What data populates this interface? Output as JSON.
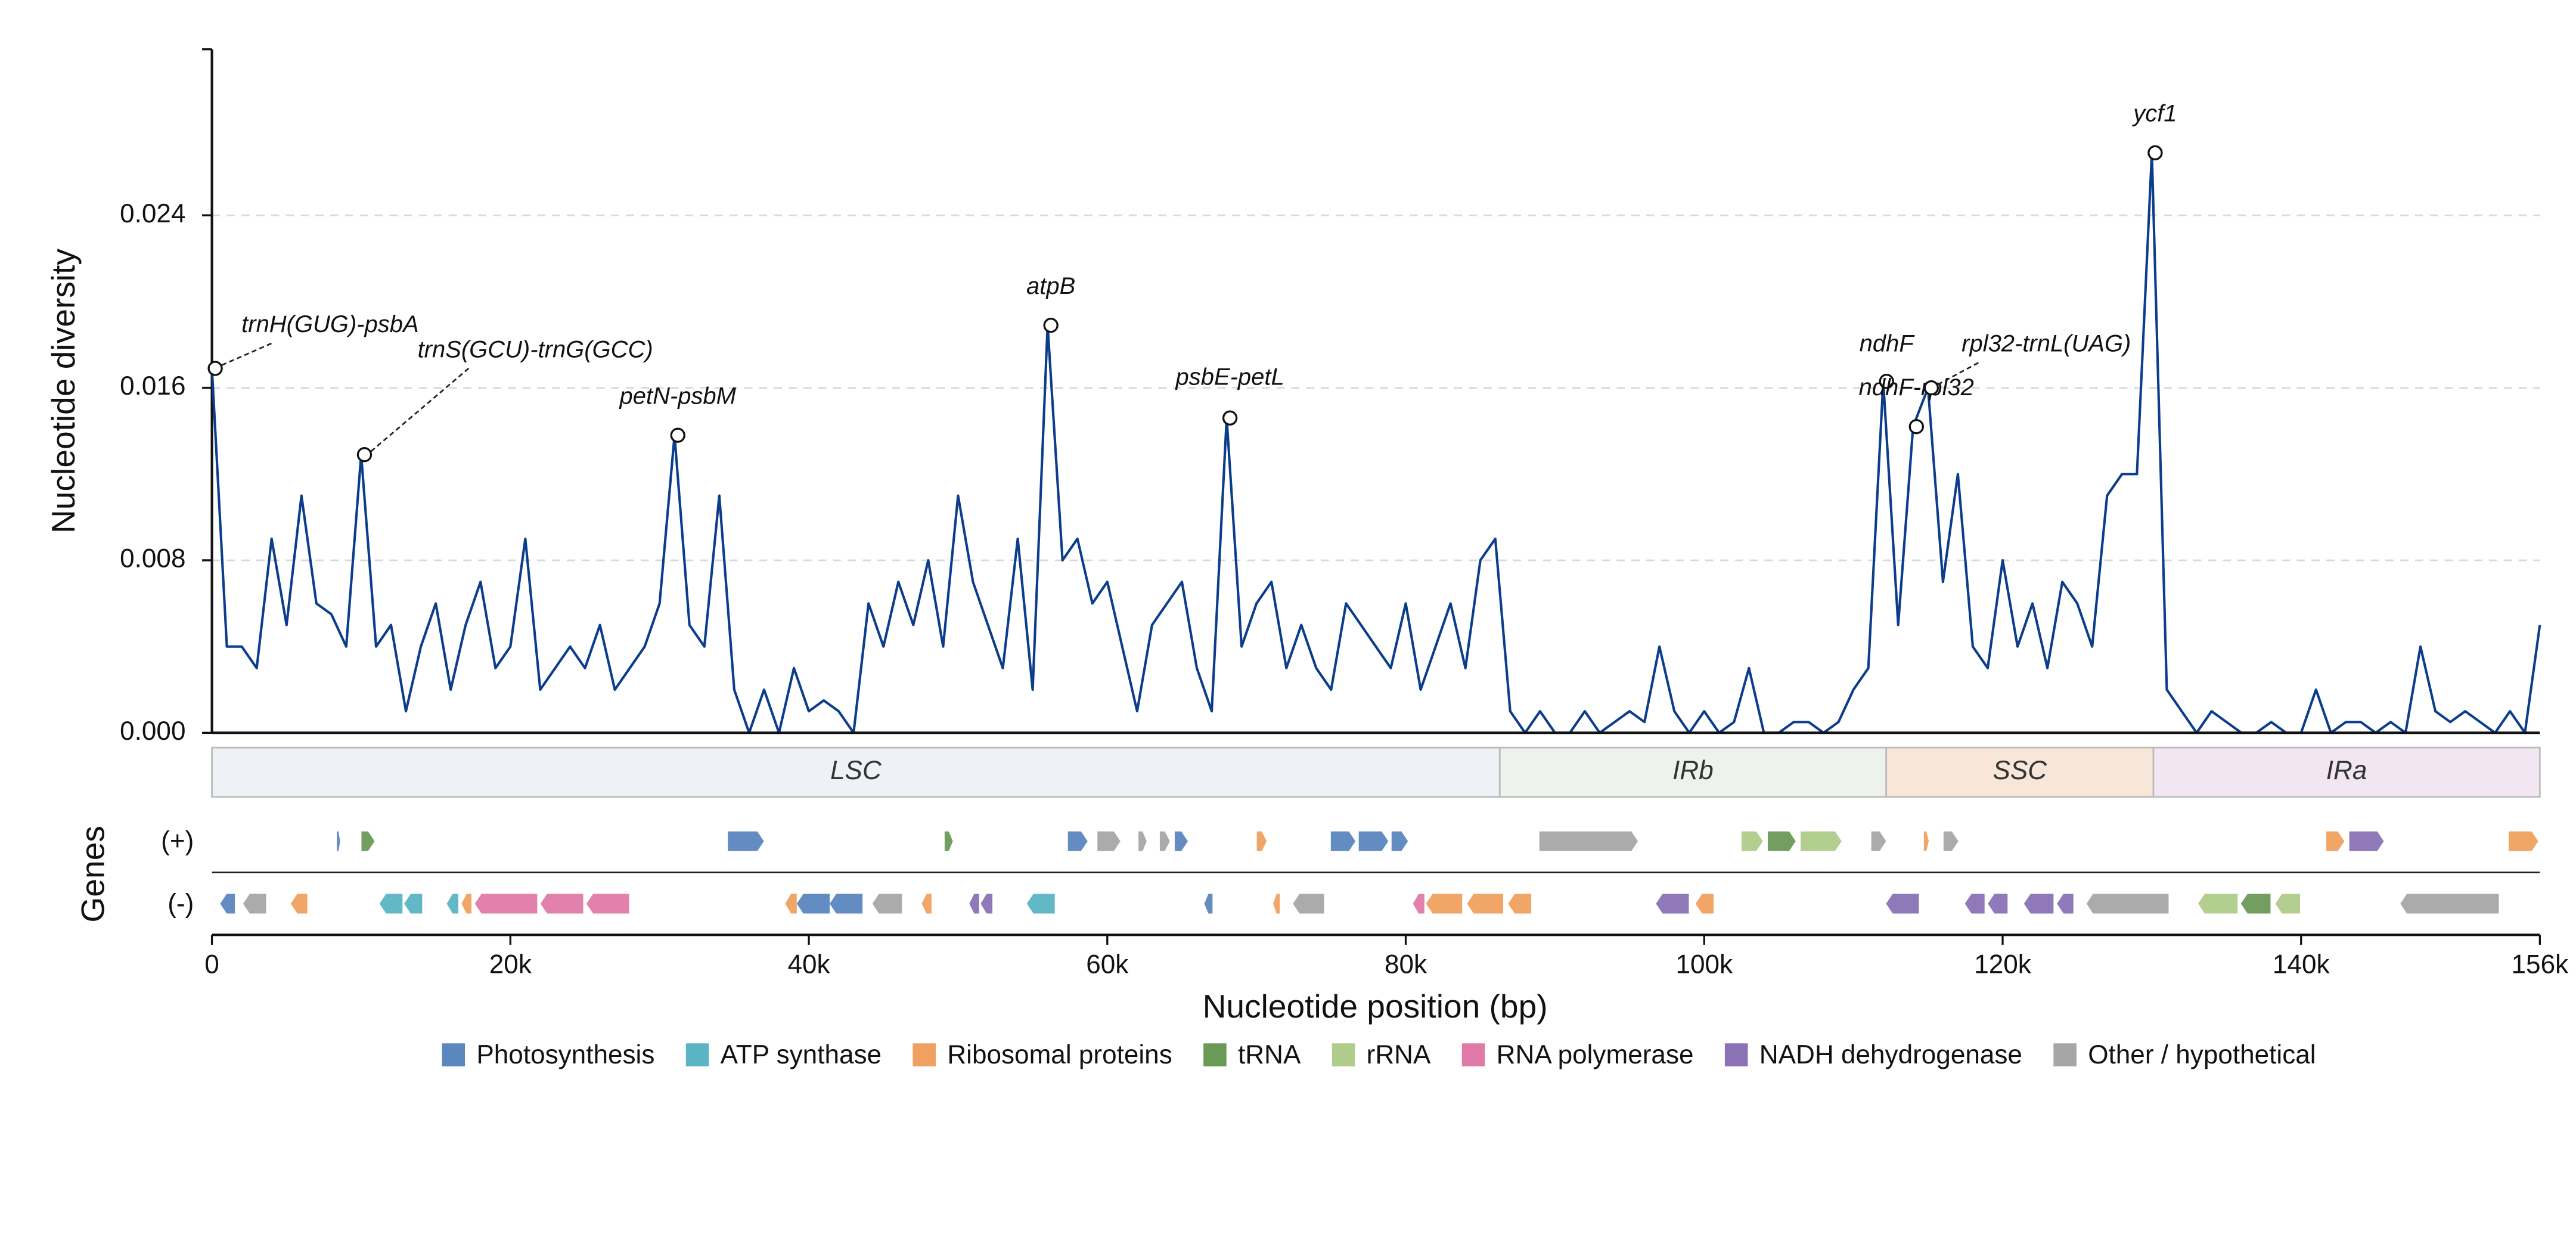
{
  "chart_data": {
    "type": "line",
    "ylabel": "Nucleotide diversity",
    "xlabel": "Nucleotide position (bp)",
    "genes_label": "Genes",
    "plus_label": "(+)",
    "minus_label": "(-)",
    "color": "#0b3d8c",
    "grid": true,
    "xlim": [
      0,
      156000
    ],
    "ylim": [
      0,
      0.0317
    ],
    "yticks": [
      {
        "value": 0,
        "label": "0.000"
      },
      {
        "value": 0.008,
        "label": "0.008"
      },
      {
        "value": 0.016,
        "label": "0.016"
      },
      {
        "value": 0.024,
        "label": "0.024"
      }
    ],
    "xticks": [
      0,
      {
        "value": 20000,
        "label": "20k"
      },
      {
        "value": 40000,
        "label": "40k"
      },
      {
        "value": 60000,
        "label": "60k"
      },
      {
        "value": 80000,
        "label": "80k"
      },
      {
        "value": 100000,
        "label": "100k"
      },
      {
        "value": 120000,
        "label": "120k"
      },
      {
        "value": 140000,
        "label": "140k"
      },
      {
        "value": 156000,
        "label": "156k"
      }
    ],
    "x": [
      0,
      1000,
      2000,
      3000,
      4000,
      5000,
      6000,
      7000,
      8000,
      9000,
      10000,
      11000,
      12000,
      13000,
      14000,
      15000,
      16000,
      17000,
      18000,
      19000,
      20000,
      21000,
      22000,
      23000,
      24000,
      25000,
      26000,
      27000,
      28000,
      29000,
      30000,
      31000,
      32000,
      33000,
      34000,
      35000,
      36000,
      37000,
      38000,
      39000,
      40000,
      41000,
      42000,
      43000,
      44000,
      45000,
      46000,
      47000,
      48000,
      49000,
      50000,
      51000,
      52000,
      53000,
      54000,
      55000,
      56000,
      57000,
      58000,
      59000,
      60000,
      61000,
      62000,
      63000,
      64000,
      65000,
      66000,
      67000,
      68000,
      69000,
      70000,
      71000,
      72000,
      73000,
      74000,
      75000,
      76000,
      77000,
      78000,
      79000,
      80000,
      81000,
      82000,
      83000,
      84000,
      85000,
      86000,
      87000,
      88000,
      89000,
      90000,
      91000,
      92000,
      93000,
      94000,
      95000,
      96000,
      97000,
      98000,
      99000,
      100000,
      101000,
      102000,
      103000,
      104000,
      105000,
      106000,
      107000,
      108000,
      109000,
      110000,
      111000,
      112000,
      113000,
      114000,
      115000,
      116000,
      117000,
      118000,
      119000,
      120000,
      121000,
      122000,
      123000,
      124000,
      125000,
      126000,
      127000,
      128000,
      129000,
      130000,
      131000,
      132000,
      133000,
      134000,
      135000,
      136000,
      137000,
      138000,
      139000,
      140000,
      141000,
      142000,
      143000,
      144000,
      145000,
      146000,
      147000,
      148000,
      149000,
      150000,
      151000,
      152000,
      153000,
      154000,
      155000,
      156000
    ],
    "values": [
      0.0169,
      0.004,
      0.004,
      0.003,
      0.009,
      0.005,
      0.011,
      0.006,
      0.0055,
      0.004,
      0.0129,
      0.004,
      0.005,
      0.001,
      0.004,
      0.006,
      0.002,
      0.005,
      0.007,
      0.003,
      0.004,
      0.009,
      0.002,
      0.003,
      0.004,
      0.003,
      0.005,
      0.002,
      0.003,
      0.004,
      0.006,
      0.0138,
      0.005,
      0.004,
      0.011,
      0.002,
      0,
      0.002,
      0,
      0.003,
      0.001,
      0.0015,
      0.001,
      0,
      0.006,
      0.004,
      0.007,
      0.005,
      0.008,
      0.004,
      0.011,
      0.007,
      0.005,
      0.003,
      0.009,
      0.002,
      0.0189,
      0.008,
      0.009,
      0.006,
      0.007,
      0.004,
      0.001,
      0.005,
      0.006,
      0.007,
      0.003,
      0.001,
      0.0146,
      0.004,
      0.006,
      0.007,
      0.003,
      0.005,
      0.003,
      0.002,
      0.006,
      0.005,
      0.004,
      0.003,
      0.006,
      0.002,
      0.004,
      0.006,
      0.003,
      0.008,
      0.009,
      0.001,
      0,
      0.001,
      0,
      0,
      0.001,
      0,
      0.0005,
      0.001,
      0.0005,
      0.004,
      0.001,
      0,
      0.001,
      0,
      0.0005,
      0.003,
      0,
      0,
      0.0005,
      0.0005,
      0,
      0.0005,
      0.002,
      0.003,
      0.0163,
      0.005,
      0.0142,
      0.016,
      0.007,
      0.012,
      0.004,
      0.003,
      0.008,
      0.004,
      0.006,
      0.003,
      0.007,
      0.006,
      0.004,
      0.011,
      0.012,
      0.012,
      0.0269,
      0.002,
      0.001,
      0,
      0.001,
      0.0005,
      0,
      0,
      0.0005,
      0,
      0,
      0.002,
      0,
      0.0005,
      0.0005,
      0,
      0.0005,
      0,
      0.004,
      0.001,
      0.0005,
      0.001,
      0.0005,
      0,
      0.001,
      0,
      0.005
    ],
    "annotations": [
      {
        "text": "trnH(GUG)-psbA",
        "x": 0,
        "y": 0.0169
      },
      {
        "text": "trnS(GCU)-trnG(GCC)",
        "x": 10000,
        "y": 0.0129
      },
      {
        "text": "petN-psbM",
        "x": 31000,
        "y": 0.0138
      },
      {
        "text": "atpB",
        "x": 56000,
        "y": 0.0189
      },
      {
        "text": "psbE-petL",
        "x": 68000,
        "y": 0.0146
      },
      {
        "text": "ndhF",
        "x": 112000,
        "y": 0.0163
      },
      {
        "text": "ndhF-rpl32",
        "x": 114000,
        "y": 0.0142
      },
      {
        "text": "rpl32-trnL(UAG)",
        "x": 115000,
        "y": 0.016
      },
      {
        "text": "ycf1",
        "x": 130000,
        "y": 0.0269
      }
    ],
    "regions": [
      {
        "name": "LSC",
        "start": 0,
        "end": 86300,
        "color": "#eef2f6"
      },
      {
        "name": "IRb",
        "start": 86300,
        "end": 112200,
        "color": "#edf3ec"
      },
      {
        "name": "SSC",
        "start": 112200,
        "end": 130100,
        "color": "#f8e7d9"
      },
      {
        "name": "IRa",
        "start": 130100,
        "end": 156000,
        "color": "#f1e6f1"
      }
    ],
    "gene_categories": [
      {
        "name": "Photosynthesis",
        "color": "#5b87bf"
      },
      {
        "name": "ATP synthase",
        "color": "#5bb4c4"
      },
      {
        "name": "Ribosomal proteins",
        "color": "#f0a160"
      },
      {
        "name": "tRNA",
        "color": "#6a9a57"
      },
      {
        "name": "rRNA",
        "color": "#afcc8a"
      },
      {
        "name": "RNA polymerase",
        "color": "#e07aa8"
      },
      {
        "name": "NADH dehydrogenase",
        "color": "#8a72b5"
      },
      {
        "name": "Other / hypothetical",
        "color": "#a6a6a6"
      }
    ],
    "genes": [
      {
        "start": 8370,
        "end": 8590,
        "strand": "+",
        "category": "Photosynthesis"
      },
      {
        "start": 10020,
        "end": 10900,
        "strand": "+",
        "category": "tRNA"
      },
      {
        "start": 34570,
        "end": 36990,
        "strand": "+",
        "category": "Photosynthesis"
      },
      {
        "start": 49100,
        "end": 49650,
        "strand": "+",
        "category": "tRNA"
      },
      {
        "start": 57360,
        "end": 58680,
        "strand": "+",
        "category": "Photosynthesis"
      },
      {
        "start": 59340,
        "end": 60880,
        "strand": "+",
        "category": "Other / hypothetical"
      },
      {
        "start": 62090,
        "end": 62640,
        "strand": "+",
        "category": "Other / hypothetical"
      },
      {
        "start": 63520,
        "end": 64190,
        "strand": "+",
        "category": "Other / hypothetical"
      },
      {
        "start": 64520,
        "end": 65400,
        "strand": "+",
        "category": "Photosynthesis"
      },
      {
        "start": 70020,
        "end": 70680,
        "strand": "+",
        "category": "Ribosomal proteins"
      },
      {
        "start": 74980,
        "end": 76630,
        "strand": "+",
        "category": "Photosynthesis"
      },
      {
        "start": 76850,
        "end": 78830,
        "strand": "+",
        "category": "Photosynthesis"
      },
      {
        "start": 79050,
        "end": 80150,
        "strand": "+",
        "category": "Photosynthesis"
      },
      {
        "start": 88960,
        "end": 95560,
        "strand": "+",
        "category": "Other / hypothetical"
      },
      {
        "start": 102500,
        "end": 103930,
        "strand": "+",
        "category": "rRNA"
      },
      {
        "start": 104260,
        "end": 106130,
        "strand": "+",
        "category": "tRNA"
      },
      {
        "start": 106460,
        "end": 109210,
        "strand": "+",
        "category": "rRNA"
      },
      {
        "start": 111200,
        "end": 112190,
        "strand": "+",
        "category": "Other / hypothetical"
      },
      {
        "start": 114720,
        "end": 115050,
        "strand": "+",
        "category": "Ribosomal proteins"
      },
      {
        "start": 116040,
        "end": 117030,
        "strand": "+",
        "category": "Other / hypothetical"
      },
      {
        "start": 141690,
        "end": 142900,
        "strand": "+",
        "category": "Ribosomal proteins"
      },
      {
        "start": 143230,
        "end": 145540,
        "strand": "+",
        "category": "NADH dehydrogenase"
      },
      {
        "start": 153910,
        "end": 155890,
        "strand": "+",
        "category": "Ribosomal proteins"
      },
      {
        "start": 550,
        "end": 1540,
        "strand": "-",
        "category": "Photosynthesis"
      },
      {
        "start": 2090,
        "end": 3630,
        "strand": "-",
        "category": "Other / hypothetical"
      },
      {
        "start": 5280,
        "end": 6390,
        "strand": "-",
        "category": "Ribosomal proteins"
      },
      {
        "start": 11230,
        "end": 12770,
        "strand": "-",
        "category": "ATP synthase"
      },
      {
        "start": 12880,
        "end": 14090,
        "strand": "-",
        "category": "ATP synthase"
      },
      {
        "start": 15740,
        "end": 16510,
        "strand": "-",
        "category": "ATP synthase"
      },
      {
        "start": 16730,
        "end": 17390,
        "strand": "-",
        "category": "Ribosomal proteins"
      },
      {
        "start": 17620,
        "end": 21800,
        "strand": "-",
        "category": "RNA polymerase"
      },
      {
        "start": 22020,
        "end": 24880,
        "strand": "-",
        "category": "RNA polymerase"
      },
      {
        "start": 25100,
        "end": 27960,
        "strand": "-",
        "category": "RNA polymerase"
      },
      {
        "start": 38420,
        "end": 39190,
        "strand": "-",
        "category": "Ribosomal proteins"
      },
      {
        "start": 39190,
        "end": 41400,
        "strand": "-",
        "category": "Photosynthesis"
      },
      {
        "start": 41400,
        "end": 43600,
        "strand": "-",
        "category": "Photosynthesis"
      },
      {
        "start": 44260,
        "end": 46240,
        "strand": "-",
        "category": "Other / hypothetical"
      },
      {
        "start": 47560,
        "end": 48220,
        "strand": "-",
        "category": "Ribosomal proteins"
      },
      {
        "start": 50750,
        "end": 51410,
        "strand": "-",
        "category": "NADH dehydrogenase"
      },
      {
        "start": 51520,
        "end": 52300,
        "strand": "-",
        "category": "NADH dehydrogenase"
      },
      {
        "start": 54610,
        "end": 56480,
        "strand": "-",
        "category": "ATP synthase"
      },
      {
        "start": 66500,
        "end": 67050,
        "strand": "-",
        "category": "Photosynthesis"
      },
      {
        "start": 71120,
        "end": 71560,
        "strand": "-",
        "category": "Ribosomal proteins"
      },
      {
        "start": 72440,
        "end": 74530,
        "strand": "-",
        "category": "Other / hypothetical"
      },
      {
        "start": 80480,
        "end": 81250,
        "strand": "-",
        "category": "RNA polymerase"
      },
      {
        "start": 81360,
        "end": 83780,
        "strand": "-",
        "category": "Ribosomal proteins"
      },
      {
        "start": 84110,
        "end": 86530,
        "strand": "-",
        "category": "Ribosomal proteins"
      },
      {
        "start": 86860,
        "end": 88410,
        "strand": "-",
        "category": "Ribosomal proteins"
      },
      {
        "start": 96770,
        "end": 98970,
        "strand": "-",
        "category": "NADH dehydrogenase"
      },
      {
        "start": 99420,
        "end": 100630,
        "strand": "-",
        "category": "Ribosomal proteins"
      },
      {
        "start": 112190,
        "end": 114390,
        "strand": "-",
        "category": "NADH dehydrogenase"
      },
      {
        "start": 117470,
        "end": 118790,
        "strand": "-",
        "category": "NADH dehydrogenase"
      },
      {
        "start": 119010,
        "end": 120330,
        "strand": "-",
        "category": "NADH dehydrogenase"
      },
      {
        "start": 121430,
        "end": 123410,
        "strand": "-",
        "category": "NADH dehydrogenase"
      },
      {
        "start": 123640,
        "end": 124740,
        "strand": "-",
        "category": "NADH dehydrogenase"
      },
      {
        "start": 125620,
        "end": 131120,
        "strand": "-",
        "category": "Other / hypothetical"
      },
      {
        "start": 133100,
        "end": 135750,
        "strand": "-",
        "category": "rRNA"
      },
      {
        "start": 135970,
        "end": 137950,
        "strand": "-",
        "category": "tRNA"
      },
      {
        "start": 138280,
        "end": 139930,
        "strand": "-",
        "category": "rRNA"
      },
      {
        "start": 146650,
        "end": 153250,
        "strand": "-",
        "category": "Other / hypothetical"
      }
    ]
  }
}
